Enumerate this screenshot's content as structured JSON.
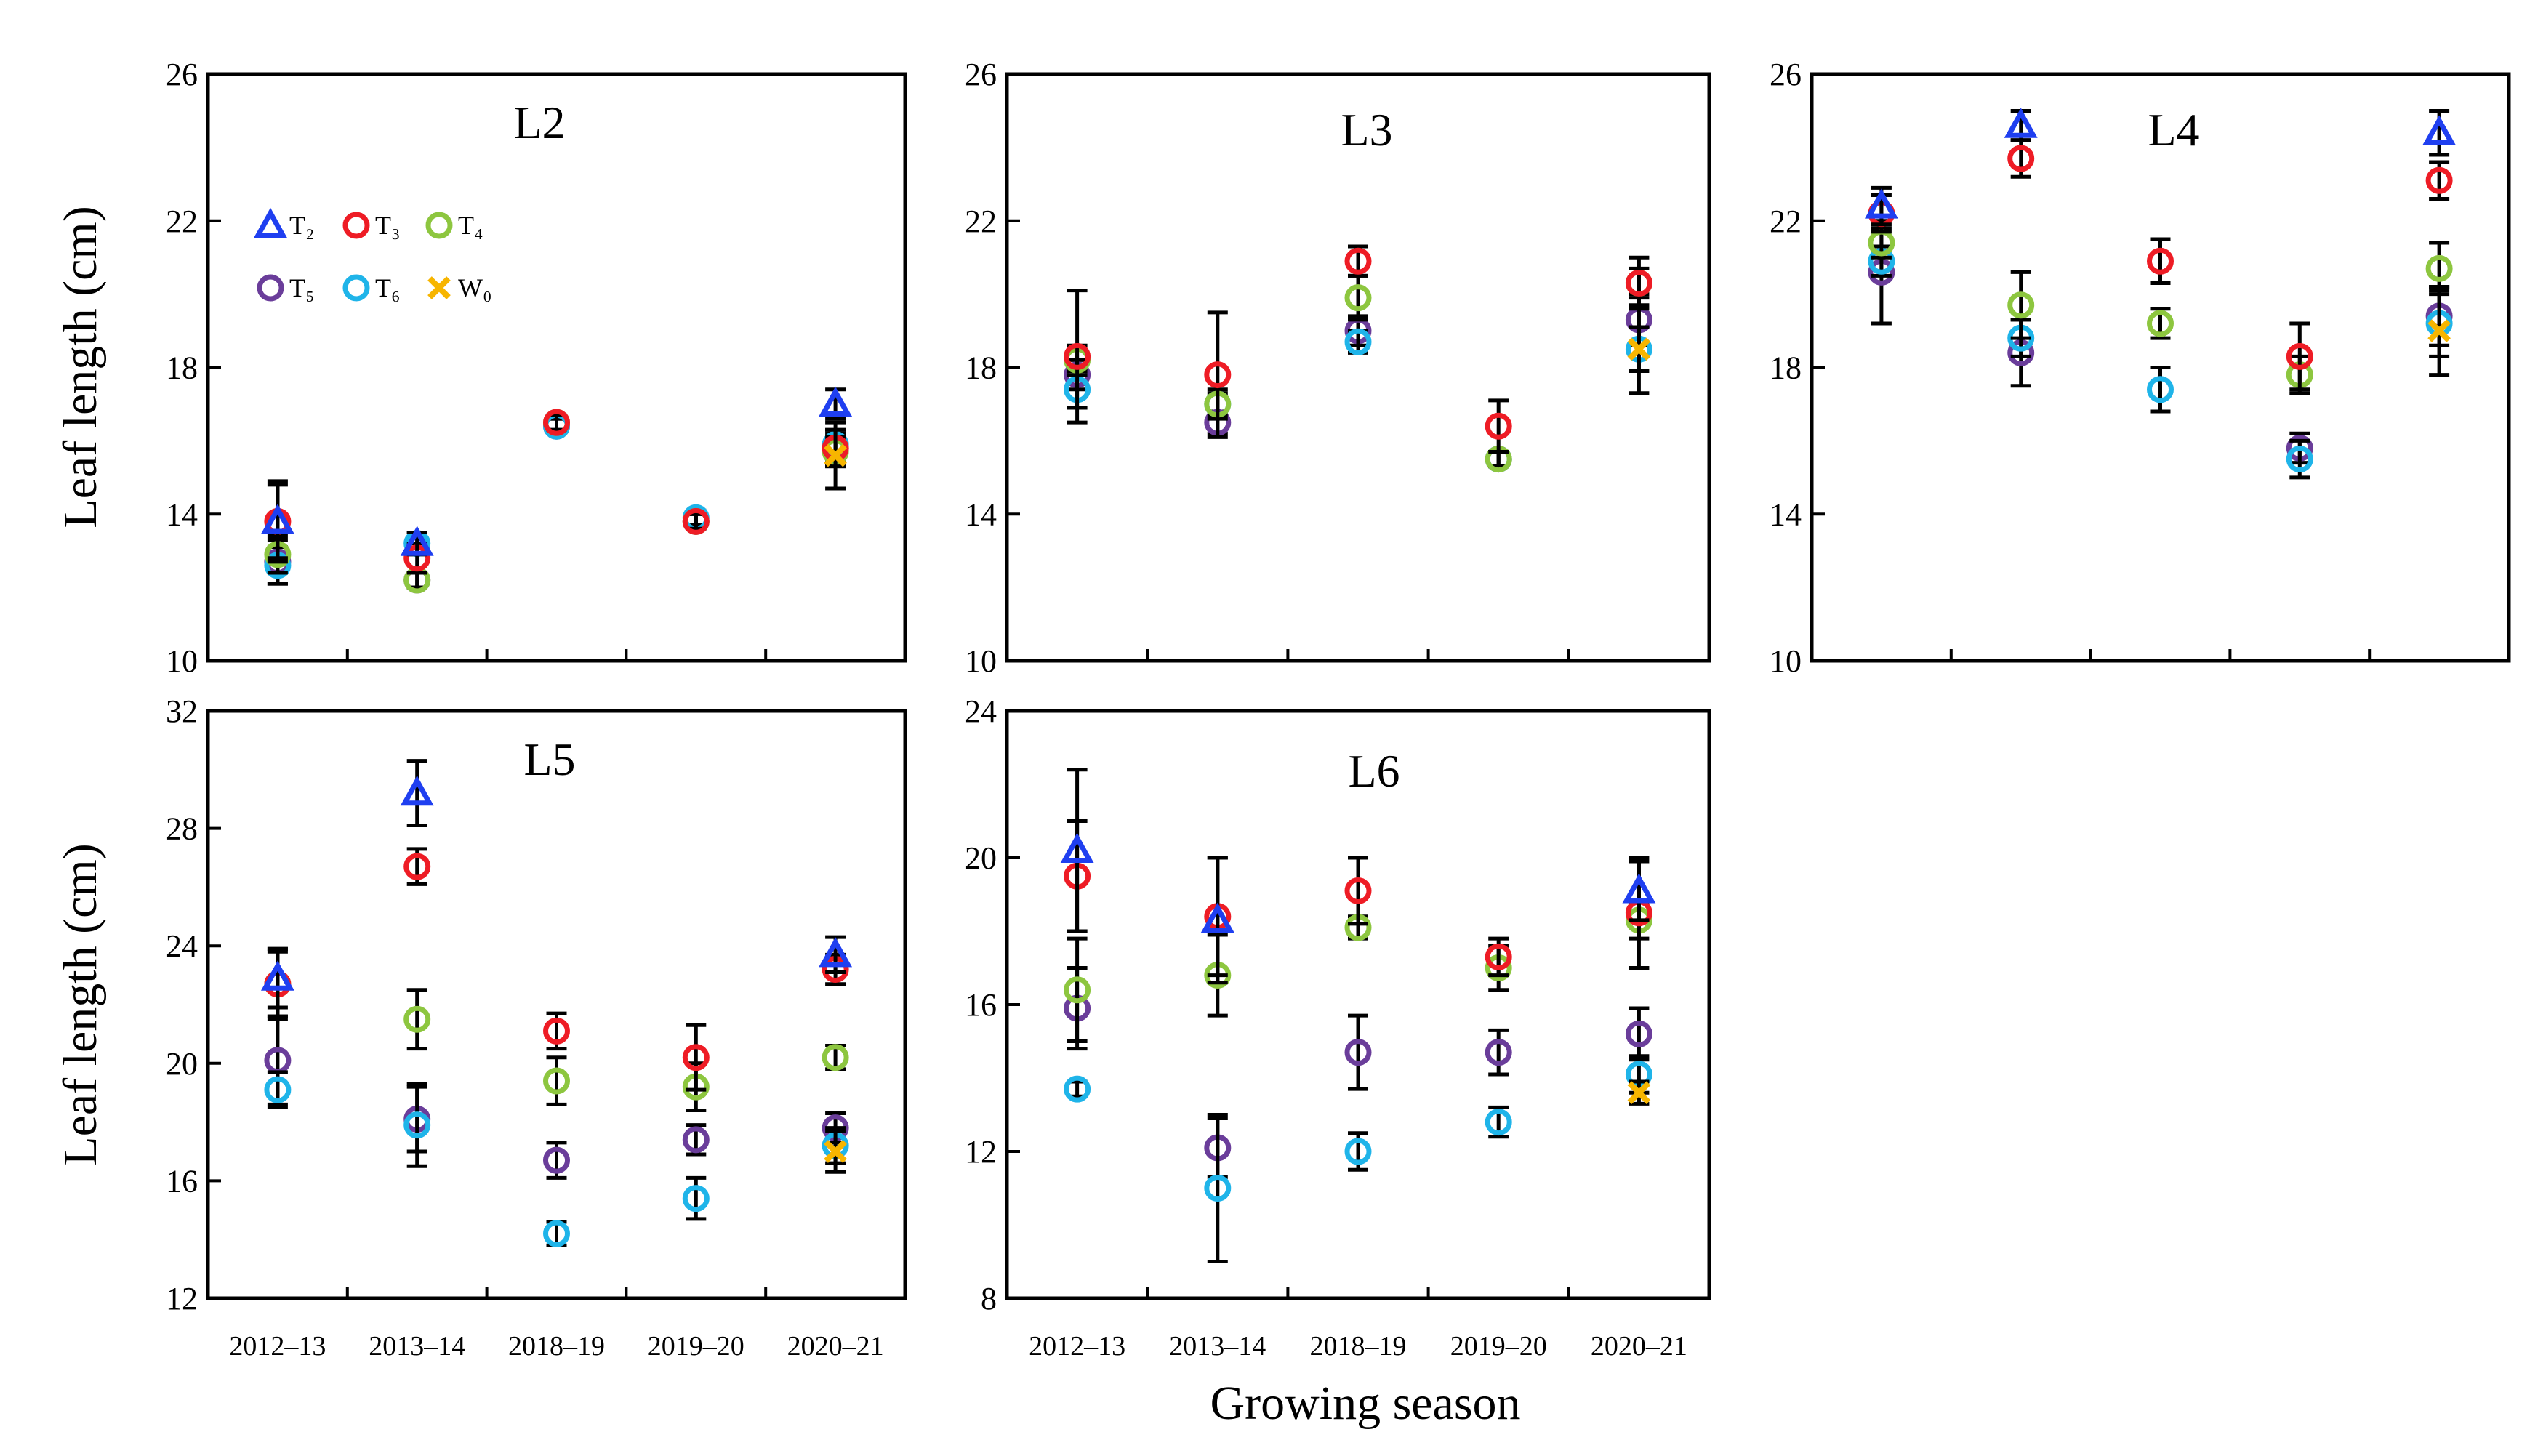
{
  "figure": {
    "xlabel": "Growing season",
    "ylabel": "Leaf length (cm)",
    "categories": [
      "2012–13",
      "2013–14",
      "2018–19",
      "2019–20",
      "2020–21"
    ]
  },
  "legend": [
    {
      "name": "T₂",
      "color": "#1f3ff0",
      "marker": "triangle"
    },
    {
      "name": "T₃",
      "color": "#ee1c25",
      "marker": "circle"
    },
    {
      "name": "T₄",
      "color": "#8dc63f",
      "marker": "circle"
    },
    {
      "name": "T₅",
      "color": "#6a3d9a",
      "marker": "circle"
    },
    {
      "name": "T₆",
      "color": "#1fb4e9",
      "marker": "circle"
    },
    {
      "name": "W₀",
      "color": "#f7b500",
      "marker": "x"
    }
  ],
  "chart_data": [
    {
      "type": "scatter",
      "title": "L2",
      "ylim": [
        10,
        26
      ],
      "yticks": [
        10,
        14,
        18,
        22,
        26
      ],
      "categories": [
        "2012–13",
        "2013–14",
        "2018–19",
        "2019–20",
        "2020–21"
      ],
      "series": [
        {
          "name": "T₂",
          "values": [
            13.8,
            13.2,
            null,
            null,
            17.0
          ],
          "err": [
            1.1,
            0.3,
            null,
            null,
            0.4
          ]
        },
        {
          "name": "T₃",
          "values": [
            13.8,
            12.8,
            16.5,
            13.8,
            15.8
          ],
          "err": [
            1.0,
            0.4,
            0.2,
            0.2,
            0.5
          ]
        },
        {
          "name": "T₄",
          "values": [
            12.9,
            12.2,
            16.5,
            13.8,
            15.7
          ],
          "err": [
            0.5,
            0.2,
            0.2,
            0.2,
            0.4
          ]
        },
        {
          "name": "T₅",
          "values": [
            12.7,
            12.2,
            16.4,
            13.8,
            15.8
          ],
          "err": [
            0.6,
            0.2,
            0.2,
            0.2,
            0.4
          ]
        },
        {
          "name": "T₆",
          "values": [
            12.6,
            13.2,
            16.4,
            13.9,
            15.9
          ],
          "err": [
            0.5,
            0.3,
            0.2,
            0.2,
            0.4
          ]
        },
        {
          "name": "W₀",
          "values": [
            null,
            null,
            null,
            null,
            15.6
          ],
          "err": [
            null,
            null,
            null,
            null,
            0.9
          ]
        }
      ]
    },
    {
      "type": "scatter",
      "title": "L3",
      "ylim": [
        10,
        26
      ],
      "yticks": [
        10,
        14,
        18,
        22,
        26
      ],
      "categories": [
        "2012–13",
        "2013–14",
        "2018–19",
        "2019–20",
        "2020–21"
      ],
      "series": [
        {
          "name": "T₂",
          "values": [
            null,
            null,
            null,
            null,
            null
          ],
          "err": [
            null,
            null,
            null,
            null,
            null
          ]
        },
        {
          "name": "T₃",
          "values": [
            18.3,
            17.8,
            20.9,
            16.4,
            20.3
          ],
          "err": [
            1.8,
            1.7,
            0.4,
            0.7,
            0.7
          ]
        },
        {
          "name": "T₄",
          "values": [
            18.2,
            17.0,
            19.9,
            15.5,
            20.3
          ],
          "err": [
            0.4,
            0.4,
            0.6,
            0.2,
            0.4
          ]
        },
        {
          "name": "T₅",
          "values": [
            17.8,
            16.5,
            19.0,
            15.5,
            19.3
          ],
          "err": [
            0.4,
            0.3,
            0.4,
            0.2,
            0.7
          ]
        },
        {
          "name": "T₆",
          "values": [
            17.4,
            17.0,
            18.7,
            15.5,
            18.5
          ],
          "err": [
            0.5,
            0.3,
            0.3,
            0.2,
            0.6
          ]
        },
        {
          "name": "W₀",
          "values": [
            null,
            null,
            null,
            null,
            18.5
          ],
          "err": [
            null,
            null,
            null,
            null,
            1.2
          ]
        }
      ]
    },
    {
      "type": "scatter",
      "title": "L4",
      "ylim": [
        10,
        26
      ],
      "yticks": [
        10,
        14,
        18,
        22,
        26
      ],
      "categories": [
        "2012–13",
        "2013–14",
        "2018–19",
        "2019–20",
        "2020–21"
      ],
      "series": [
        {
          "name": "T₂",
          "values": [
            22.4,
            24.6,
            null,
            null,
            24.4
          ],
          "err": [
            0.5,
            0.4,
            null,
            null,
            0.6
          ]
        },
        {
          "name": "T₃",
          "values": [
            22.2,
            23.7,
            20.9,
            18.3,
            23.1
          ],
          "err": [
            0.5,
            0.5,
            0.6,
            0.9,
            0.5
          ]
        },
        {
          "name": "T₄",
          "values": [
            21.4,
            19.7,
            19.2,
            17.8,
            20.7
          ],
          "err": [
            0.4,
            0.9,
            0.4,
            0.5,
            0.7
          ]
        },
        {
          "name": "T₅",
          "values": [
            20.6,
            18.4,
            null,
            15.8,
            19.4
          ],
          "err": [
            1.4,
            0.9,
            null,
            0.4,
            0.8
          ]
        },
        {
          "name": "T₆",
          "values": [
            20.9,
            18.8,
            17.4,
            15.5,
            19.2
          ],
          "err": [
            0.4,
            0.5,
            0.6,
            0.5,
            0.9
          ]
        },
        {
          "name": "W₀",
          "values": [
            null,
            null,
            null,
            null,
            19.0
          ],
          "err": [
            null,
            null,
            null,
            null,
            1.2
          ]
        }
      ]
    },
    {
      "type": "scatter",
      "title": "L5",
      "ylim": [
        12,
        32
      ],
      "yticks": [
        12,
        16,
        20,
        24,
        28,
        32
      ],
      "categories": [
        "2012–13",
        "2013–14",
        "2018–19",
        "2019–20",
        "2020–21"
      ],
      "series": [
        {
          "name": "T₂",
          "values": [
            22.9,
            29.2,
            null,
            null,
            23.7
          ],
          "err": [
            1.0,
            1.1,
            null,
            null,
            0.6
          ]
        },
        {
          "name": "T₃",
          "values": [
            22.7,
            26.7,
            21.1,
            20.2,
            23.2
          ],
          "err": [
            1.1,
            0.6,
            0.6,
            1.1,
            0.5
          ]
        },
        {
          "name": "T₄",
          "values": [
            22.7,
            21.5,
            19.4,
            19.2,
            20.2
          ],
          "err": [
            1.2,
            1.0,
            0.8,
            0.8,
            0.4
          ]
        },
        {
          "name": "T₅",
          "values": [
            20.1,
            18.1,
            16.7,
            17.4,
            17.8
          ],
          "err": [
            1.5,
            1.1,
            0.6,
            0.5,
            0.5
          ]
        },
        {
          "name": "T₆",
          "values": [
            19.1,
            17.9,
            14.2,
            15.4,
            17.2
          ],
          "err": [
            0.6,
            1.4,
            0.4,
            0.7,
            0.6
          ]
        },
        {
          "name": "W₀",
          "values": [
            null,
            null,
            null,
            null,
            17.0
          ],
          "err": [
            null,
            null,
            null,
            null,
            0.7
          ]
        }
      ]
    },
    {
      "type": "scatter",
      "title": "L6",
      "ylim": [
        8,
        24
      ],
      "yticks": [
        8,
        12,
        16,
        20,
        24
      ],
      "categories": [
        "2012–13",
        "2013–14",
        "2018–19",
        "2019–20",
        "2020–21"
      ],
      "series": [
        {
          "name": "T₂",
          "values": [
            20.2,
            18.3,
            null,
            null,
            19.1
          ],
          "err": [
            2.2,
            1.7,
            null,
            null,
            0.8
          ]
        },
        {
          "name": "T₃",
          "values": [
            19.5,
            18.4,
            19.1,
            17.3,
            18.5
          ],
          "err": [
            1.5,
            1.6,
            0.9,
            0.5,
            1.5
          ]
        },
        {
          "name": "T₄",
          "values": [
            16.4,
            16.8,
            18.1,
            17.0,
            18.3
          ],
          "err": [
            1.4,
            1.1,
            0.3,
            0.6,
            0.5
          ]
        },
        {
          "name": "T₅",
          "values": [
            15.9,
            12.1,
            14.7,
            14.7,
            15.2
          ],
          "err": [
            1.1,
            0.8,
            1.0,
            0.6,
            0.7
          ]
        },
        {
          "name": "T₆",
          "values": [
            13.7,
            11.0,
            12.0,
            12.8,
            14.1
          ],
          "err": [
            0.2,
            2.0,
            0.5,
            0.4,
            0.5
          ]
        },
        {
          "name": "W₀",
          "values": [
            null,
            null,
            null,
            null,
            13.6
          ],
          "err": [
            null,
            null,
            null,
            null,
            0.3
          ]
        }
      ]
    }
  ]
}
